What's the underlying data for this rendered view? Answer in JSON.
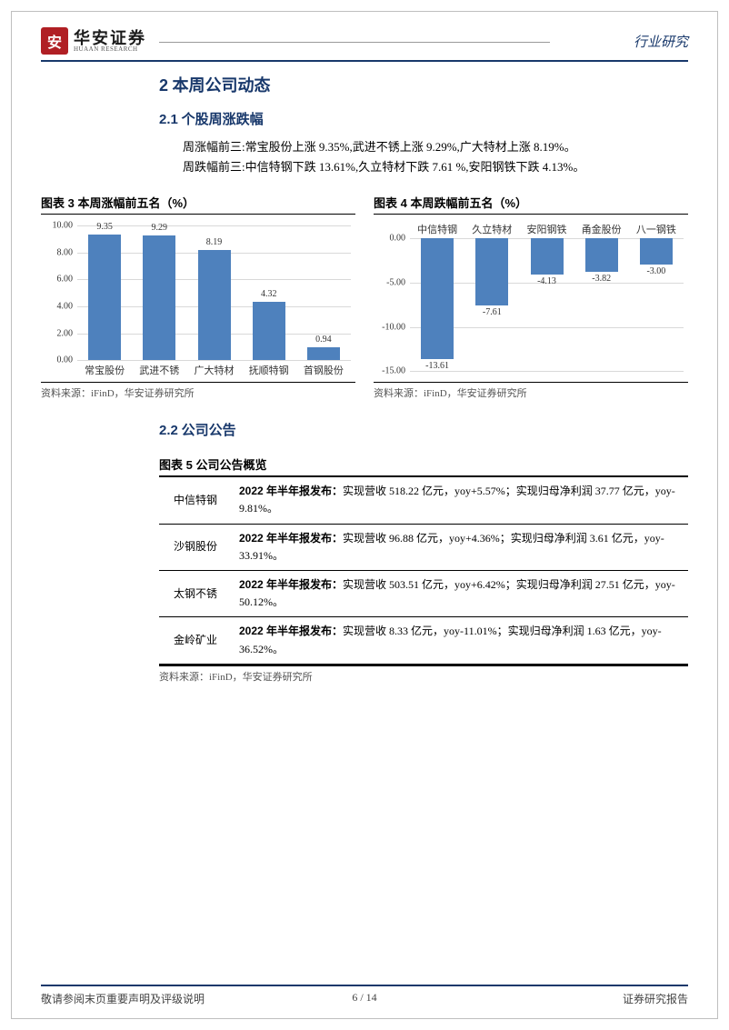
{
  "header": {
    "logo_glyph": "安",
    "logo_cn": "华安证券",
    "logo_en": "HUAAN RESEARCH",
    "right": "行业研究"
  },
  "sections": {
    "h2_num": "2",
    "h2_title": "本周公司动态",
    "h3_1_num": "2.1",
    "h3_1_title": "个股周涨跌幅",
    "p1": "周涨幅前三:常宝股份上涨 9.35%,武进不锈上涨 9.29%,广大特材上涨 8.19%。",
    "p2": "周跌幅前三:中信特钢下跌 13.61%,久立特材下跌 7.61 %,安阳钢铁下跌 4.13%。",
    "h3_2_num": "2.2",
    "h3_2_title": "公司公告"
  },
  "chart3": {
    "title": "图表 3 本周涨幅前五名（%）",
    "type": "bar",
    "categories": [
      "常宝股份",
      "武进不锈",
      "广大特材",
      "抚顺特钢",
      "首钢股份"
    ],
    "values": [
      9.35,
      9.29,
      8.19,
      4.32,
      0.94
    ],
    "bar_color": "#4e81bd",
    "ylim": [
      0.0,
      10.0
    ],
    "ytick_step": 2.0,
    "tick_decimals": 2,
    "grid_color": "#d9d9d9",
    "background_color": "#ffffff",
    "source": "资料来源：iFinD，华安证券研究所"
  },
  "chart4": {
    "title": "图表 4 本周跌幅前五名（%）",
    "type": "bar",
    "categories": [
      "中信特钢",
      "久立特材",
      "安阳钢铁",
      "甬金股份",
      "八一钢铁"
    ],
    "values": [
      -13.61,
      -7.61,
      -4.13,
      -3.82,
      -3.0
    ],
    "bar_color": "#4e81bd",
    "ylim": [
      -15.0,
      0.0
    ],
    "ytick_step": 5.0,
    "tick_decimals": 2,
    "grid_color": "#d9d9d9",
    "background_color": "#ffffff",
    "source": "资料来源：iFinD，华安证券研究所"
  },
  "table5": {
    "title": "图表 5 公司公告概览",
    "rows": [
      {
        "company": "中信特钢",
        "lead": "2022 年半年报发布：",
        "rest": "实现营收 518.22 亿元，yoy+5.57%；实现归母净利润 37.77 亿元，yoy-9.81%。"
      },
      {
        "company": "沙钢股份",
        "lead": "2022 年半年报发布：",
        "rest": "实现营收 96.88 亿元，yoy+4.36%；实现归母净利润 3.61 亿元，yoy-33.91%。"
      },
      {
        "company": "太钢不锈",
        "lead": "2022 年半年报发布：",
        "rest": "实现营收 503.51 亿元，yoy+6.42%；实现归母净利润 27.51 亿元，yoy-50.12%。"
      },
      {
        "company": "金岭矿业",
        "lead": "2022 年半年报发布：",
        "rest": "实现营收 8.33 亿元，yoy-11.01%；实现归母净利润 1.63 亿元，yoy-36.52%。"
      }
    ],
    "source": "资料来源：iFinD，华安证券研究所"
  },
  "footer": {
    "left": "敬请参阅末页重要声明及评级说明",
    "center": "6  /  14",
    "right": "证券研究报告"
  }
}
